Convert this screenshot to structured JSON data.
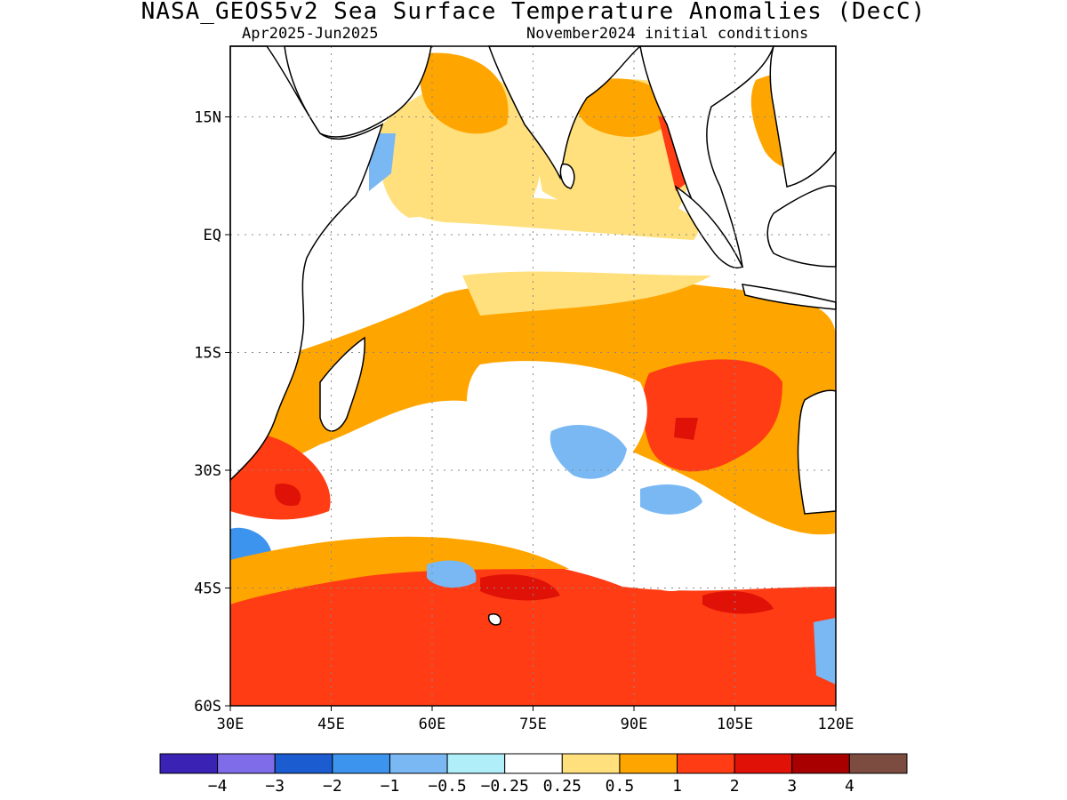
{
  "title": "NASA_GEOS5v2 Sea Surface Temperature Anomalies (DecC)",
  "subtitle_left": "Apr2025-Jun2025",
  "subtitle_right": "November2024 initial conditions",
  "map": {
    "lat_labels": [
      "15N",
      "EQ",
      "15S",
      "30S",
      "45S",
      "60S"
    ],
    "lon_labels": [
      "30E",
      "45E",
      "60E",
      "75E",
      "90E",
      "105E",
      "120E"
    ],
    "lat_values": [
      15,
      0,
      -15,
      -30,
      -45,
      -60
    ],
    "lon_values": [
      30,
      45,
      60,
      75,
      90,
      105,
      120
    ],
    "lat_range": [
      -60,
      24
    ],
    "lon_range": [
      30,
      120
    ],
    "grid": "dotted"
  },
  "colorbar": {
    "labels": [
      "-4",
      "-3",
      "-2",
      "-1",
      "-0.5",
      "-0.25",
      "0.25",
      "0.5",
      "1",
      "2",
      "3",
      "4"
    ],
    "colors": [
      "#3a22b4",
      "#7f6ce8",
      "#1b5cd0",
      "#3d94ee",
      "#7ab8f4",
      "#b0eefa",
      "#ffffff",
      "#ffe07c",
      "#ffa500",
      "#ff3c14",
      "#e01208",
      "#a80000",
      "#7d4c40"
    ]
  },
  "regions": [
    {
      "name": "southern-ocean-warm-band",
      "anomaly_bin": "1 to 2"
    },
    {
      "name": "southeast-indian-ocean-warm-patch",
      "anomaly_bin": "1 to 2"
    },
    {
      "name": "central-south-indian-cool-patch",
      "anomaly_bin": "-1 to -0.5"
    },
    {
      "name": "equatorial-neutral-zone",
      "anomaly_bin": "-0.25 to 0.25"
    }
  ]
}
